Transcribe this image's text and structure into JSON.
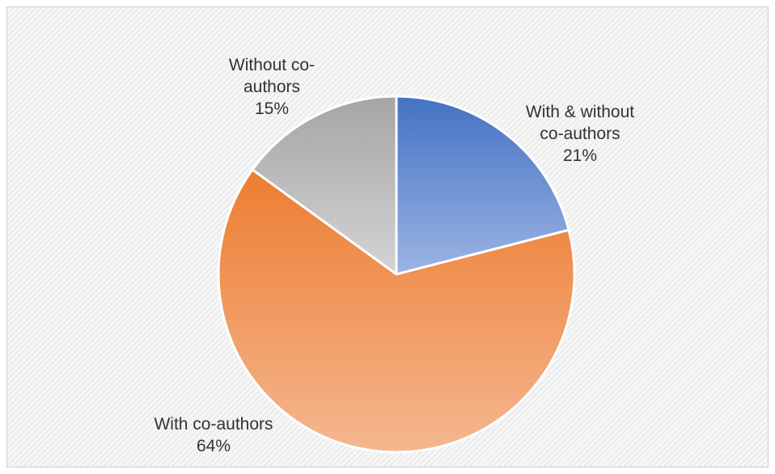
{
  "chart_data": {
    "type": "pie",
    "slices": [
      {
        "label_lines": [
          "With & without",
          "co-authors"
        ],
        "percent_label": "21%",
        "value": 21,
        "color_top": "#4472c4",
        "color_bottom": "#9bb4e3"
      },
      {
        "label_lines": [
          "With co-authors"
        ],
        "percent_label": "64%",
        "value": 64,
        "color_top": "#ed7d31",
        "color_bottom": "#f4b78f"
      },
      {
        "label_lines": [
          "Without co-",
          "authors"
        ],
        "percent_label": "15%",
        "value": 15,
        "color_top": "#a5a5a5",
        "color_bottom": "#d4d4d4"
      }
    ],
    "start_angle_deg": 0,
    "direction": "clockwise",
    "legend": "none",
    "slice_border_color": "#ffffff"
  }
}
